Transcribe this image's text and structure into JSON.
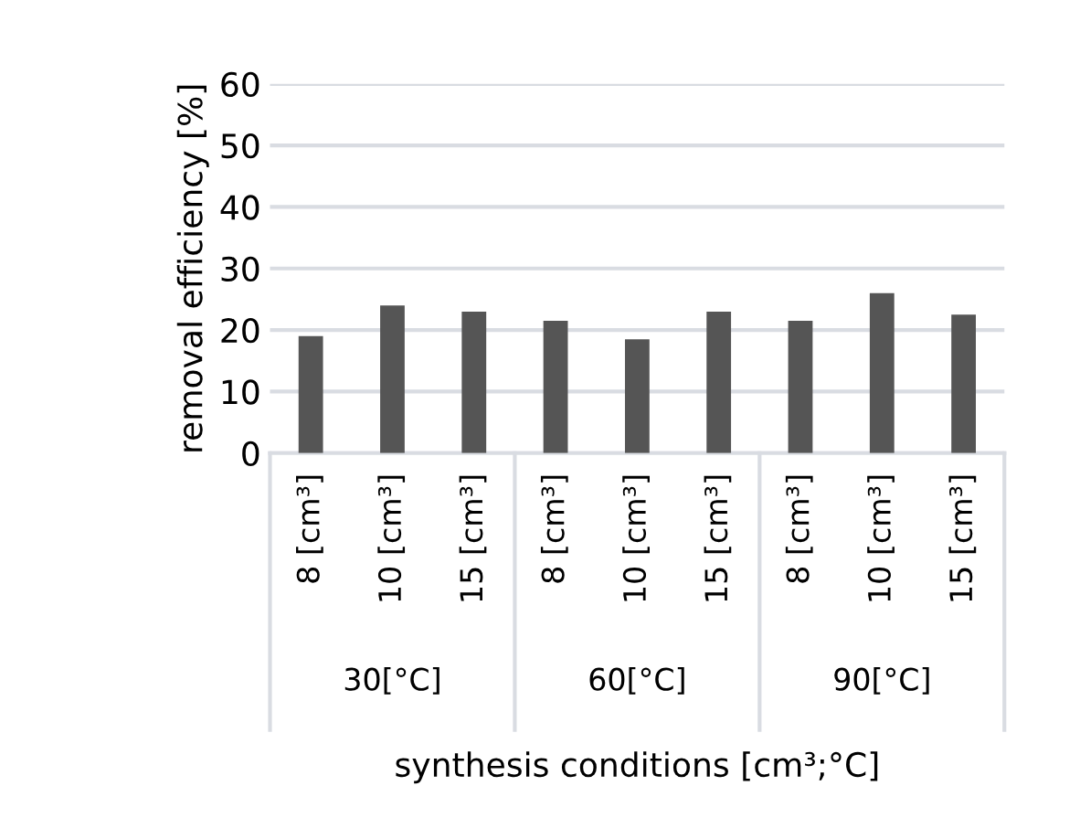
{
  "chart_data": {
    "type": "bar",
    "ylabel": "removal efficiency [%]",
    "xlabel": "synthesis conditions [cm³;°C]",
    "categories": [
      "8 [cm³]",
      "10 [cm³]",
      "15 [cm³]",
      "8 [cm³]",
      "10 [cm³]",
      "15 [cm³]",
      "8 [cm³]",
      "10 [cm³]",
      "15 [cm³]"
    ],
    "values": [
      19,
      24,
      23,
      21.5,
      18.5,
      23,
      21.5,
      26,
      22.5
    ],
    "color": "#555555",
    "annotations": [
      "30[°C]",
      "60[°C]",
      "90[°C]"
    ],
    "ylim": [
      0,
      60
    ],
    "yticks": [
      0,
      10,
      20,
      30,
      40,
      50,
      60
    ],
    "grid": "y"
  }
}
